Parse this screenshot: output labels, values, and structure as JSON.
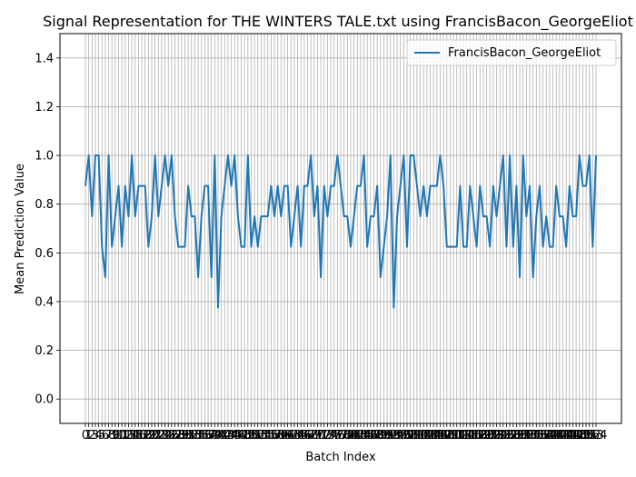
{
  "chart_data": {
    "type": "line",
    "title": "Signal Representation for THE WINTERS TALE.txt using FrancisBacon_GeorgeEliot",
    "xlabel": "Batch Index",
    "ylabel": "Mean Prediction Value",
    "ylim": [
      -0.1,
      1.5
    ],
    "yticks": [
      0.0,
      0.2,
      0.4,
      0.6,
      0.8,
      1.0,
      1.2,
      1.4
    ],
    "grid": true,
    "legend_position": "top-right",
    "series": [
      {
        "name": "FrancisBacon_GeorgeEliot",
        "color": "#1f77b4",
        "values": [
          0.875,
          1.0,
          0.75,
          1.0,
          1.0,
          0.625,
          0.5,
          1.0,
          0.625,
          0.75,
          0.875,
          0.625,
          0.875,
          0.75,
          1.0,
          0.75,
          0.875,
          0.875,
          0.875,
          0.625,
          0.75,
          1.0,
          0.75,
          0.875,
          1.0,
          0.875,
          1.0,
          0.75,
          0.625,
          0.625,
          0.625,
          0.875,
          0.75,
          0.75,
          0.5,
          0.75,
          0.875,
          0.875,
          0.5,
          1.0,
          0.375,
          0.75,
          0.875,
          1.0,
          0.875,
          1.0,
          0.75,
          0.625,
          0.625,
          1.0,
          0.625,
          0.75,
          0.625,
          0.75,
          0.75,
          0.75,
          0.875,
          0.75,
          0.875,
          0.75,
          0.875,
          0.875,
          0.625,
          0.75,
          0.875,
          0.625,
          0.875,
          0.875,
          1.0,
          0.75,
          0.875,
          0.5,
          0.875,
          0.75,
          0.875,
          0.875,
          1.0,
          0.875,
          0.75,
          0.75,
          0.625,
          0.75,
          0.875,
          0.875,
          1.0,
          0.625,
          0.75,
          0.75,
          0.875,
          0.5,
          0.625,
          0.75,
          1.0,
          0.375,
          0.75,
          0.875,
          1.0,
          0.625,
          1.0,
          1.0,
          0.875,
          0.75,
          0.875,
          0.75,
          0.875,
          0.875,
          0.875,
          1.0,
          0.875,
          0.625,
          0.625,
          0.625,
          0.625,
          0.875,
          0.625,
          0.625,
          0.875,
          0.75,
          0.625,
          0.875,
          0.75,
          0.75,
          0.625,
          0.875,
          0.75,
          0.875,
          1.0,
          0.625,
          1.0,
          0.625,
          0.875,
          0.5,
          1.0,
          0.75,
          0.875,
          0.5,
          0.75,
          0.875,
          0.625,
          0.75,
          0.625,
          0.625,
          0.875,
          0.75,
          0.75,
          0.625,
          0.875,
          0.75,
          0.75,
          1.0,
          0.875,
          0.875,
          1.0,
          0.625,
          1.0
        ]
      }
    ]
  }
}
